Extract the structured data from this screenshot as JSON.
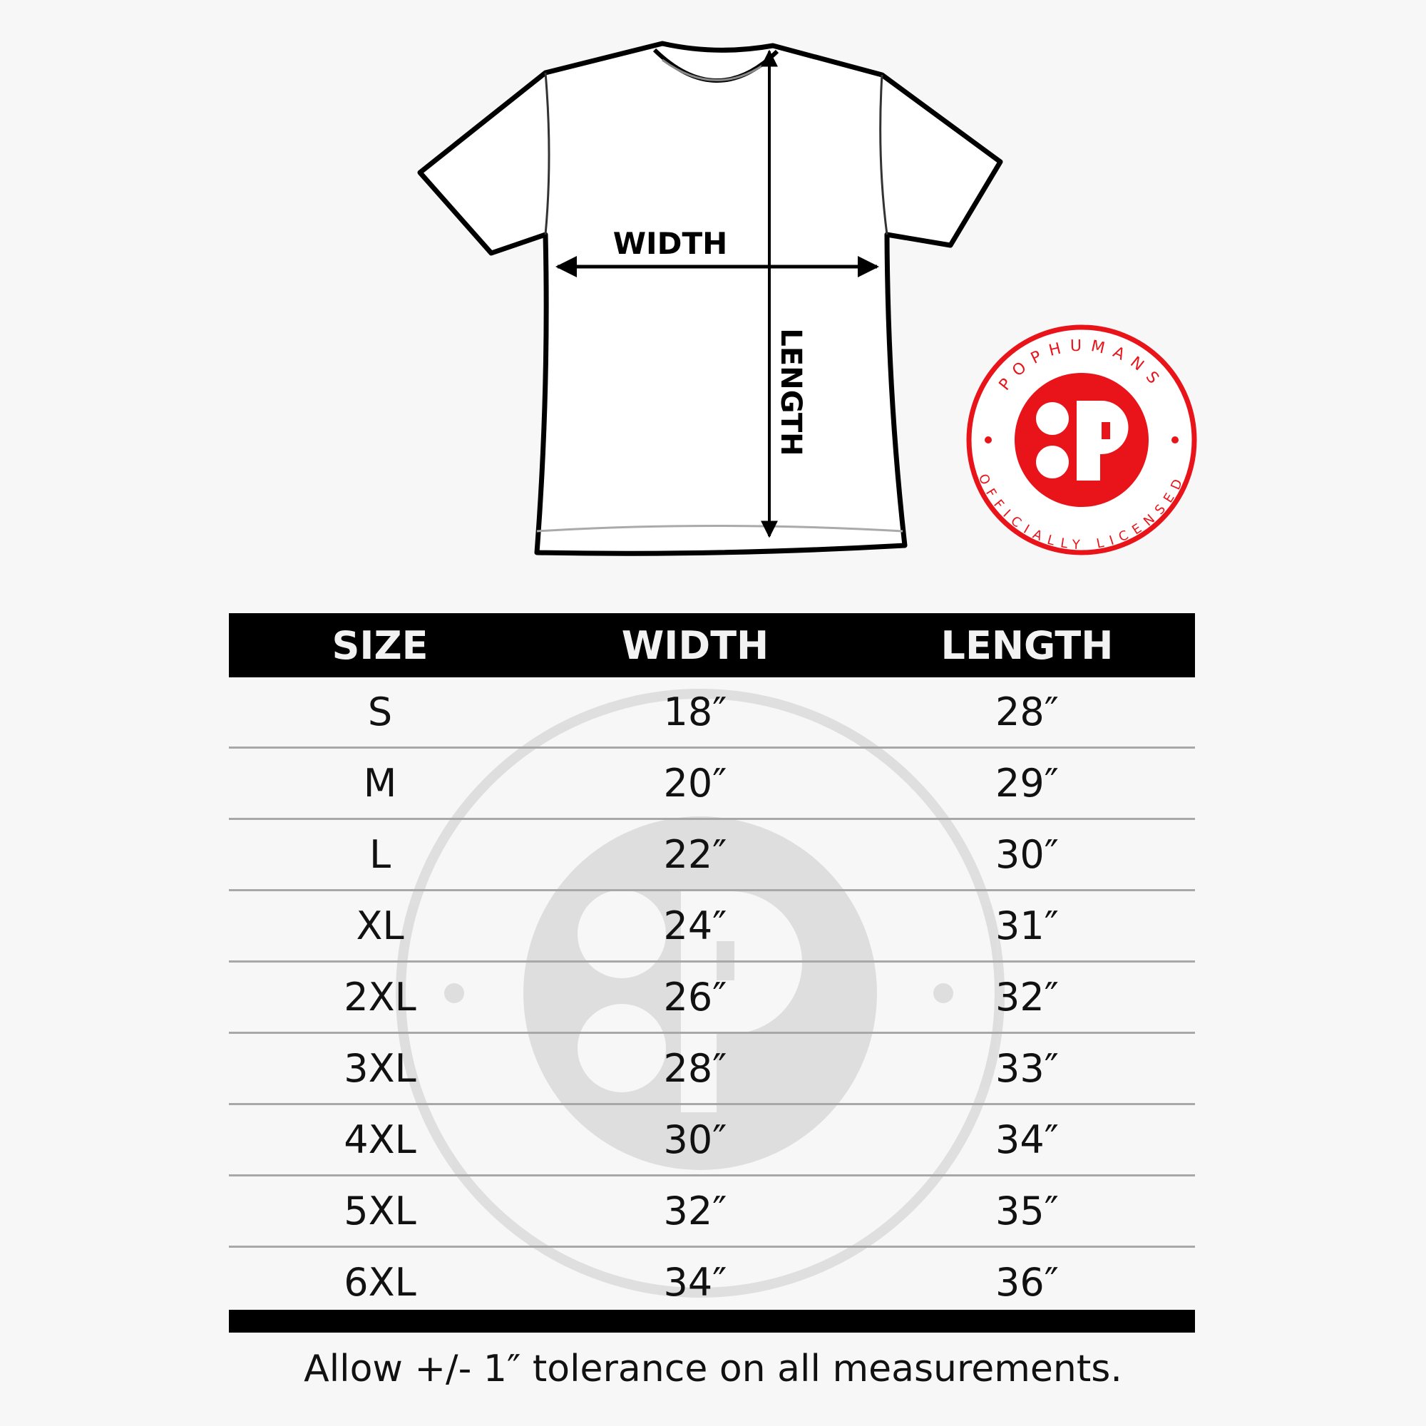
{
  "diagram": {
    "width_label": "WIDTH",
    "length_label": "LENGTH"
  },
  "badge": {
    "brand": "POPHUMANS",
    "subtitle": "OFFICIALLY LICENSED",
    "color": "#e8141a"
  },
  "table": {
    "headers": [
      "SIZE",
      "WIDTH",
      "LENGTH"
    ],
    "rows": [
      [
        "S",
        "18″",
        "28″"
      ],
      [
        "M",
        "20″",
        "29″"
      ],
      [
        "L",
        "22″",
        "30″"
      ],
      [
        "XL",
        "24″",
        "31″"
      ],
      [
        "2XL",
        "26″",
        "32″"
      ],
      [
        "3XL",
        "28″",
        "33″"
      ],
      [
        "4XL",
        "30″",
        "34″"
      ],
      [
        "5XL",
        "32″",
        "35″"
      ],
      [
        "6XL",
        "34″",
        "36″"
      ]
    ]
  },
  "footer": "Allow +/- 1″ tolerance on all measurements."
}
